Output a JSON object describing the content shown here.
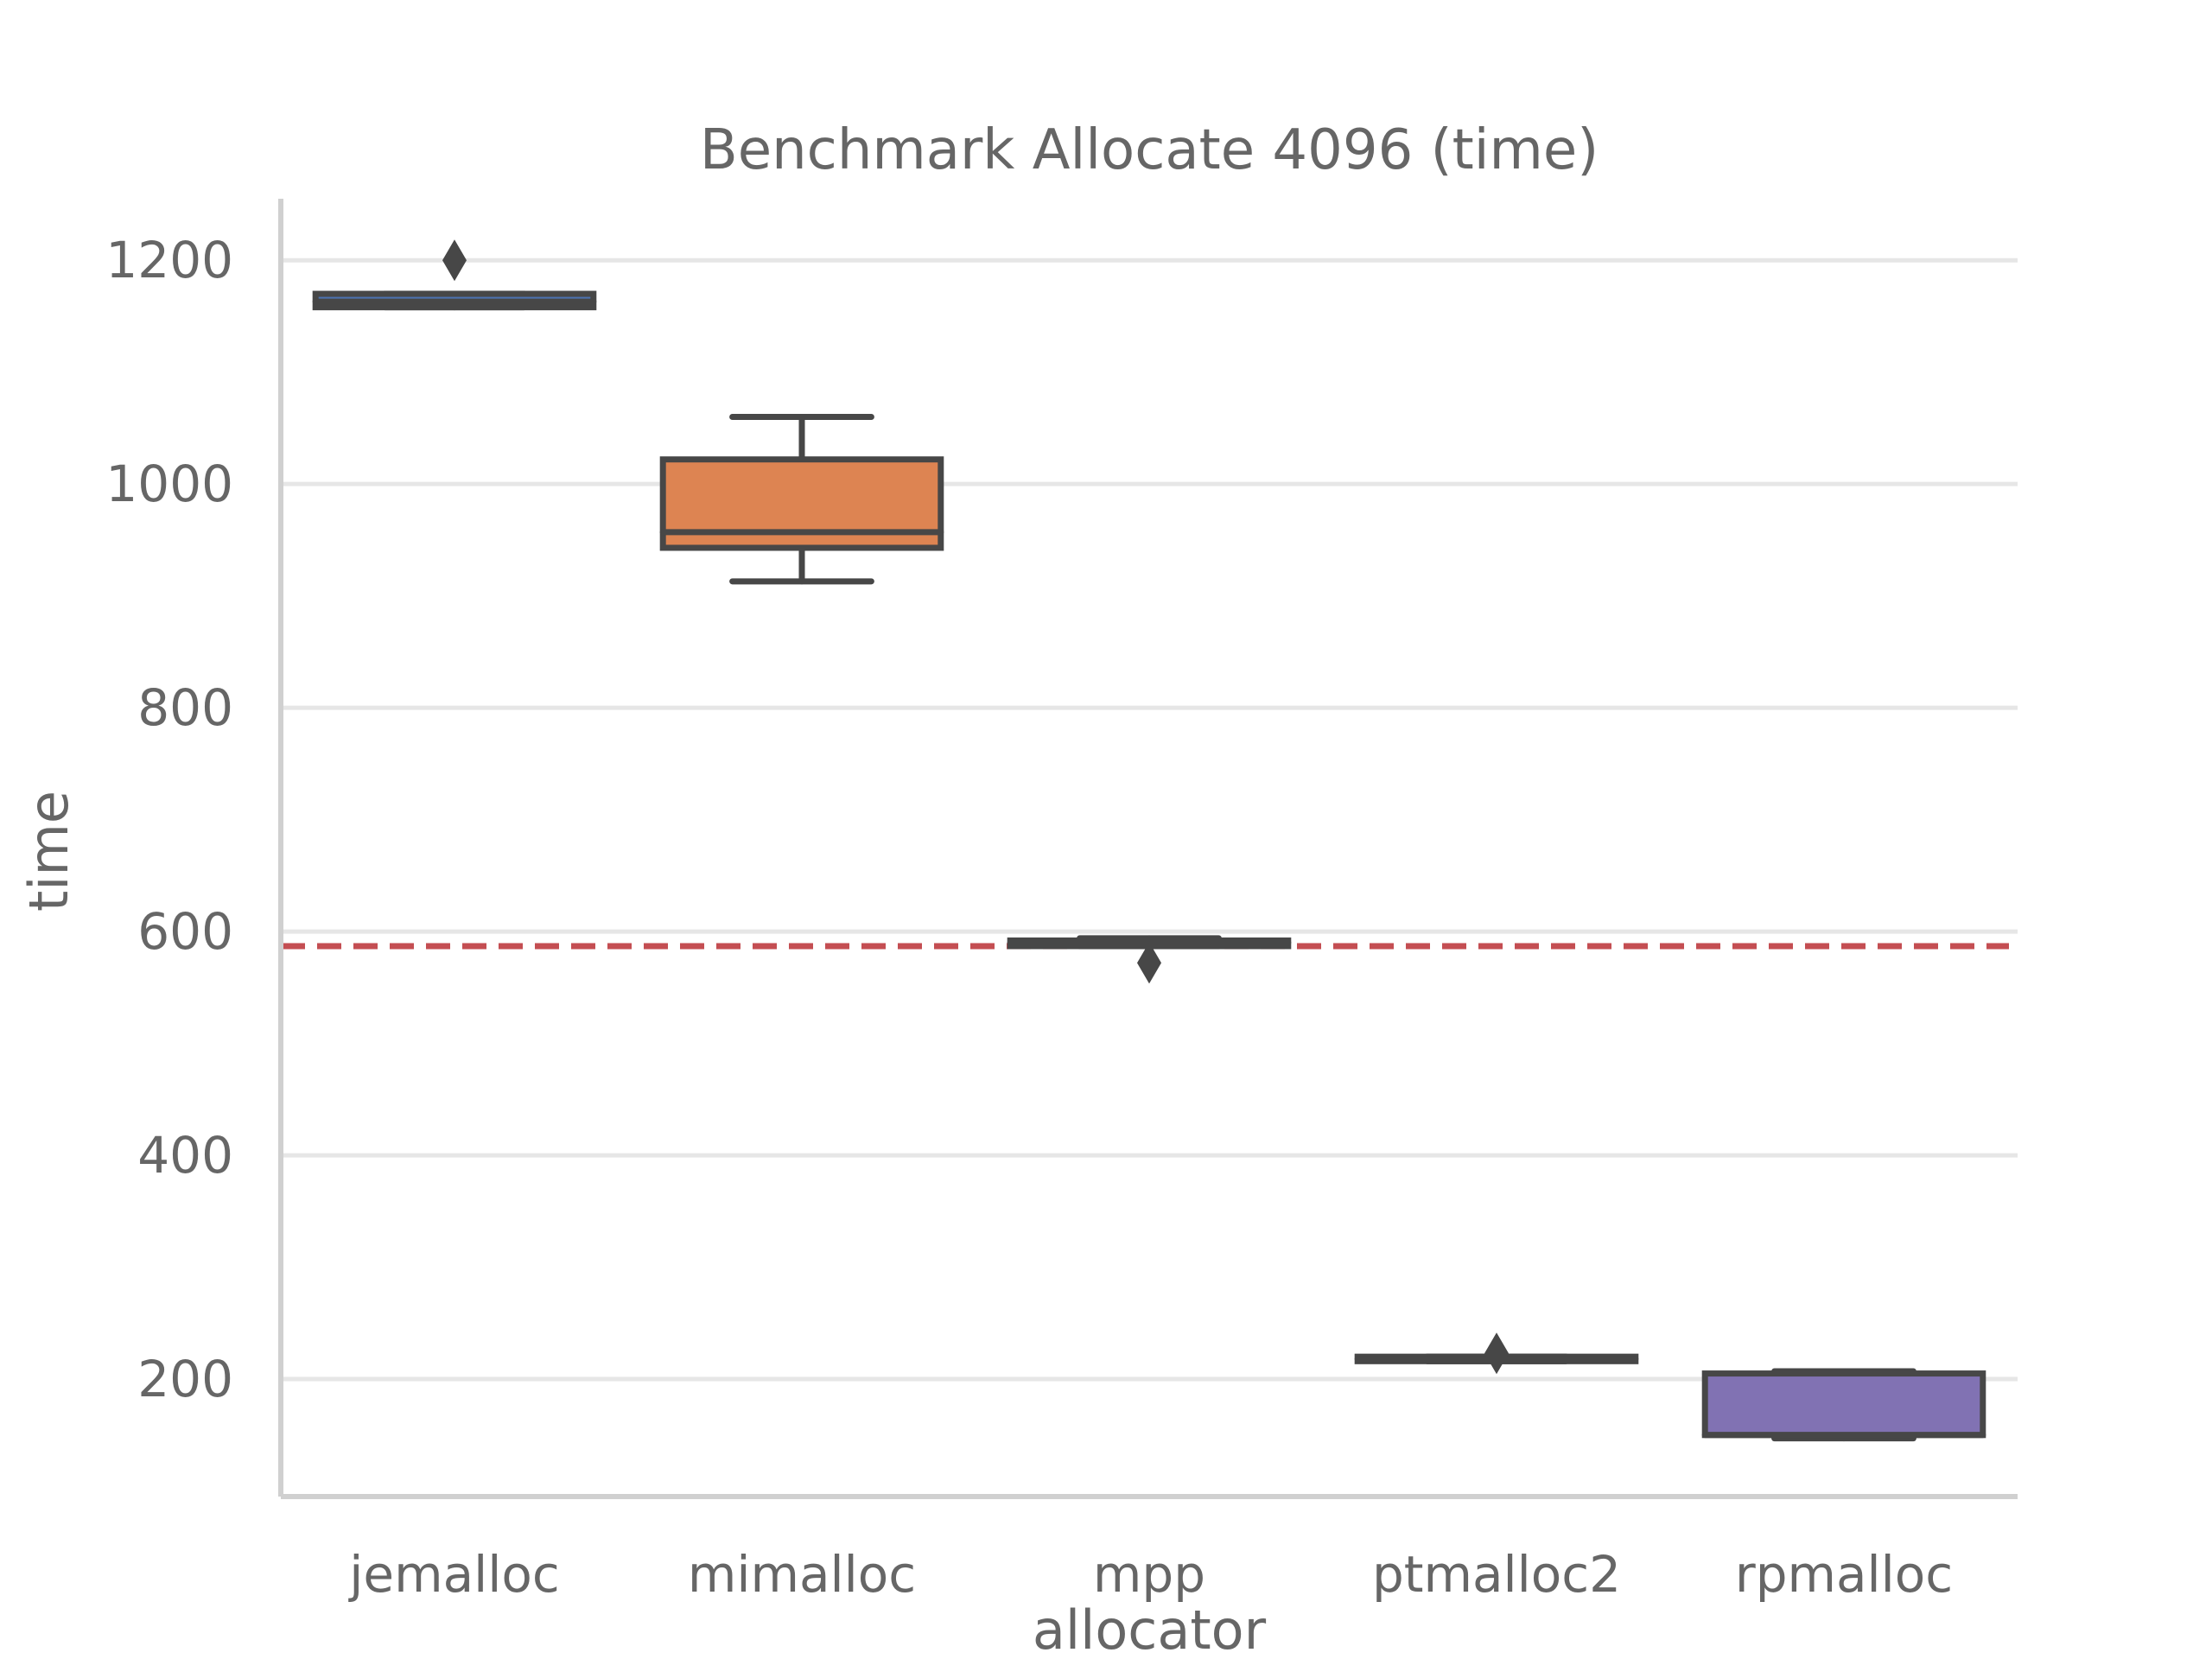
{
  "chart_data": {
    "type": "box",
    "title": "Benchmark Allocate 4096 (time)",
    "xlabel": "allocator",
    "ylabel": "time",
    "categories": [
      "jemalloc",
      "mimalloc",
      "mpp",
      "ptmalloc2",
      "rpmalloc"
    ],
    "ylim": [
      95,
      1255
    ],
    "yticks": [
      200,
      400,
      600,
      800,
      1000,
      1200
    ],
    "ytick_labels": [
      "200",
      "400",
      "600",
      "800",
      "1000",
      "1200"
    ],
    "grid": "y",
    "boxes": [
      {
        "category": "jemalloc",
        "whisker_low": 1158,
        "q1": 1158,
        "median": 1163,
        "q3": 1170,
        "whisker_high": 1170,
        "outliers": [
          1200
        ],
        "color": "#4c72b0"
      },
      {
        "category": "mimalloc",
        "whisker_low": 913,
        "q1": 943,
        "median": 957,
        "q3": 1022,
        "whisker_high": 1060,
        "outliers": [],
        "color": "#dd8452"
      },
      {
        "category": "mpp",
        "whisker_low": 587,
        "q1": 587,
        "median": 590,
        "q3": 592,
        "whisker_high": 594,
        "outliers": [
          572
        ],
        "color": "#55a868"
      },
      {
        "category": "ptmalloc2",
        "whisker_low": 216,
        "q1": 216,
        "median": 218,
        "q3": 220,
        "whisker_high": 220,
        "outliers": [
          223
        ],
        "color": "#c44e52"
      },
      {
        "category": "rpmalloc",
        "whisker_low": 147,
        "q1": 150,
        "median": 150,
        "q3": 205,
        "whisker_high": 207,
        "outliers": [],
        "color": "#8172b3"
      }
    ],
    "reference_line": {
      "y": 587,
      "color": "#c44e52",
      "style": "dashed"
    },
    "colors": {
      "grid": "#e6e6e6",
      "axis": "#d0d0d0",
      "box_edge": "#474747",
      "text": "#666666"
    }
  }
}
